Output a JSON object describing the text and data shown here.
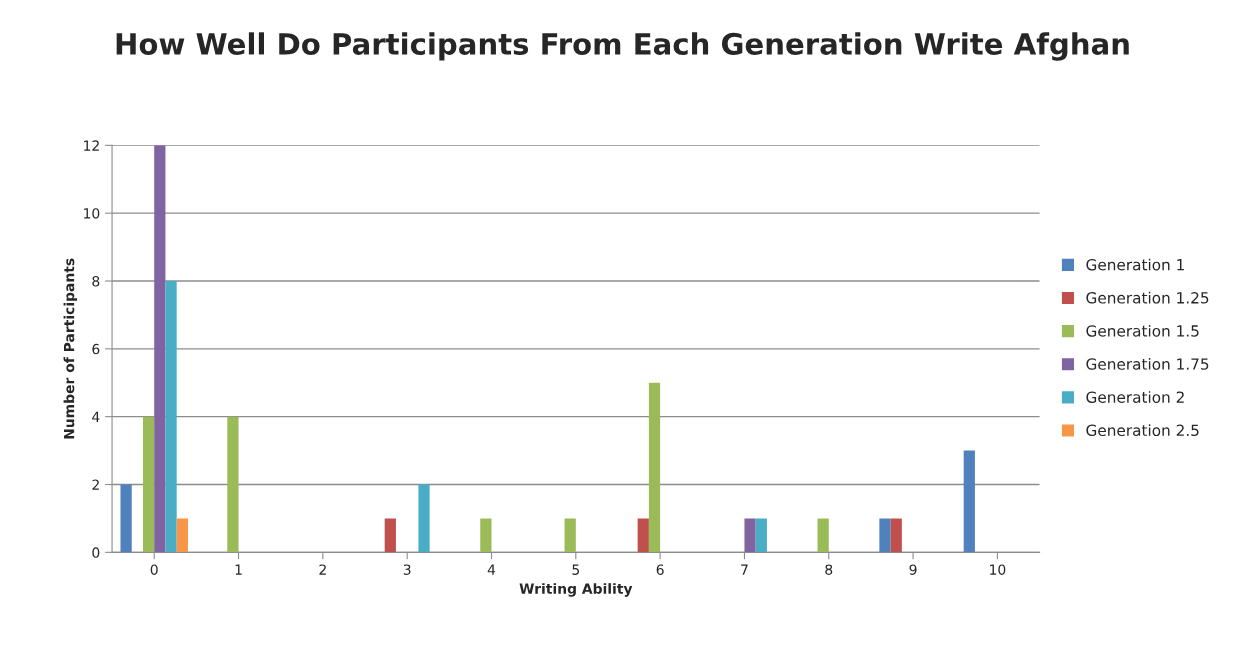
{
  "chart_data": {
    "type": "bar",
    "title": "How Well Do Participants From Each Generation Write Afghan",
    "xlabel": "Writing Ability",
    "ylabel": "Number of Participants",
    "categories": [
      "0",
      "1",
      "2",
      "3",
      "4",
      "5",
      "6",
      "7",
      "8",
      "9",
      "10"
    ],
    "series": [
      {
        "name": "Generation 1",
        "color": "#4f81bd",
        "values": [
          2,
          null,
          null,
          null,
          null,
          null,
          null,
          null,
          null,
          1,
          3
        ]
      },
      {
        "name": "Generation 1.25",
        "color": "#c0504d",
        "values": [
          null,
          null,
          null,
          1,
          null,
          null,
          1,
          null,
          null,
          1,
          null
        ]
      },
      {
        "name": "Generation 1.5",
        "color": "#9bbb59",
        "values": [
          4,
          4,
          null,
          null,
          1,
          1,
          5,
          null,
          1,
          null,
          null
        ]
      },
      {
        "name": "Generation 1.75",
        "color": "#8064a2",
        "values": [
          12,
          null,
          null,
          null,
          null,
          null,
          null,
          1,
          null,
          null,
          null
        ]
      },
      {
        "name": "Generation 2",
        "color": "#4bacc6",
        "values": [
          8,
          null,
          null,
          2,
          null,
          null,
          null,
          1,
          null,
          null,
          null
        ]
      },
      {
        "name": "Generation 2.5",
        "color": "#f79646",
        "values": [
          1,
          null,
          null,
          null,
          null,
          null,
          null,
          null,
          null,
          null,
          null
        ]
      }
    ],
    "ylim": [
      0,
      12
    ],
    "yticks": [
      0,
      2,
      4,
      6,
      8,
      10,
      12
    ],
    "grid": "y",
    "legend": "right"
  }
}
